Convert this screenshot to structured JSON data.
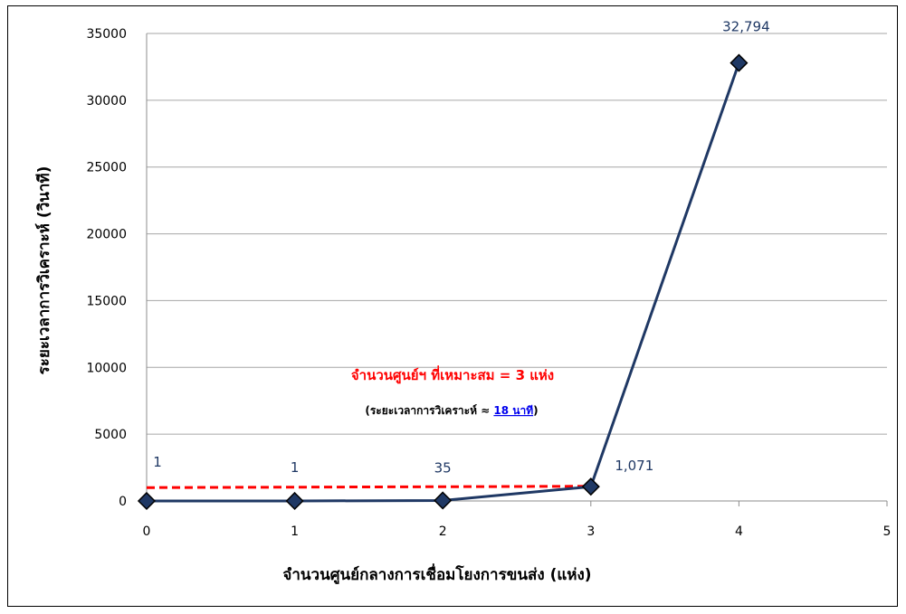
{
  "chart_data": {
    "type": "line",
    "x": [
      0,
      1,
      2,
      3,
      4
    ],
    "y": [
      1,
      1,
      35,
      1071,
      32794
    ],
    "data_labels": [
      "1",
      "1",
      "35",
      "1,071",
      "32,794"
    ],
    "xlabel": "จำนวนศูนย์กลางการเชื่อมโยงการขนส่ง (แห่ง)",
    "ylabel": "ระยะเวลาการวิเคราะห์ (วินาที)",
    "xlim": [
      0,
      5
    ],
    "ylim": [
      0,
      35000
    ],
    "x_ticks": [
      "0",
      "1",
      "2",
      "3",
      "4",
      "5"
    ],
    "y_ticks": [
      "0",
      "5000",
      "10000",
      "15000",
      "20000",
      "25000",
      "30000",
      "35000"
    ],
    "grid": "horizontal",
    "marker": "diamond",
    "colors": {
      "line": "#1f3864",
      "marker_fill": "#1f3864",
      "marker_edge": "#000000",
      "reference": "#ff0000",
      "grid": "#a6a6a6"
    },
    "reference_line": {
      "style": "dashed",
      "from": [
        0,
        1000
      ],
      "to": [
        3,
        1100
      ]
    },
    "annotation": {
      "main": "จำนวนศูนย์ฯ ที่เหมาะสม = 3 แห่ง",
      "sub_prefix": "(ระยะเวลาการวิเคราะห์ ≈ ",
      "sub_link": "18 นาที",
      "sub_suffix": ")"
    }
  }
}
